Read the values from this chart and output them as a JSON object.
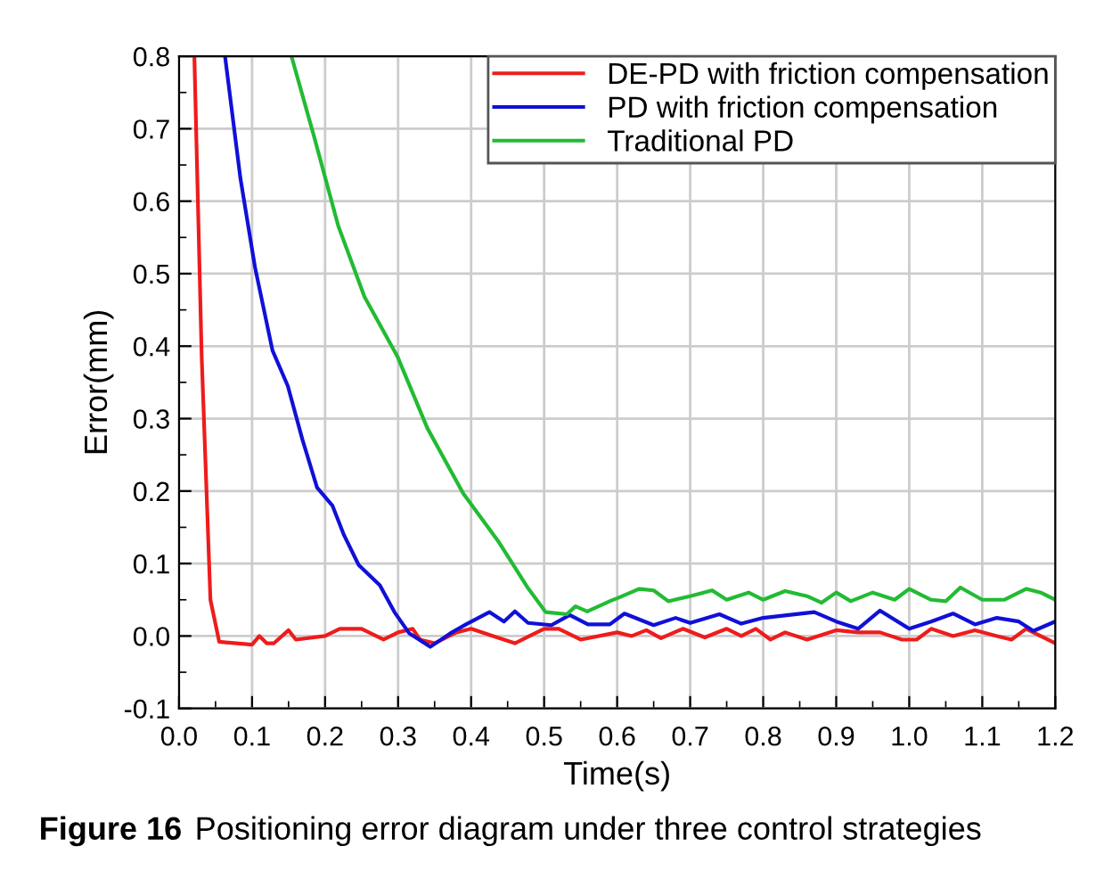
{
  "chart_data": {
    "type": "line",
    "xlabel": "Time(s)",
    "ylabel": "Error(mm)",
    "annotations": [
      "Figure 16",
      "Positioning error diagram under three control strategies"
    ],
    "xlim": [
      0.0,
      1.2
    ],
    "xticks": [
      {
        "value": 0.0,
        "label": "0.0"
      },
      0.1,
      0.2,
      0.3,
      0.4,
      0.5,
      0.6,
      0.7,
      0.8,
      0.9,
      {
        "value": 1.0,
        "label": "1.0"
      },
      1.1,
      1.2
    ],
    "ylim": [
      -0.1,
      0.8
    ],
    "yticks": [
      -0.1,
      {
        "value": 0.0,
        "label": "0.0"
      },
      0.1,
      0.2,
      0.3,
      0.4,
      0.5,
      0.6,
      0.7,
      0.8
    ],
    "grid": true,
    "legend": "top right",
    "line_style": "solid",
    "series": [
      {
        "name": "DE-PD with friction compensation",
        "color": "#ee1c1c",
        "x": [
          0.021,
          0.031,
          0.043,
          0.055,
          0.1,
          0.11,
          0.12,
          0.13,
          0.15,
          0.16,
          0.2,
          0.22,
          0.25,
          0.28,
          0.3,
          0.32,
          0.33,
          0.35,
          0.38,
          0.4,
          0.43,
          0.46,
          0.48,
          0.5,
          0.52,
          0.55,
          0.6,
          0.62,
          0.64,
          0.66,
          0.69,
          0.72,
          0.75,
          0.77,
          0.79,
          0.81,
          0.83,
          0.86,
          0.9,
          0.93,
          0.96,
          0.99,
          1.01,
          1.03,
          1.06,
          1.09,
          1.12,
          1.14,
          1.16,
          1.2
        ],
        "values": [
          0.8,
          0.386,
          0.05,
          -0.008,
          -0.012,
          0.0,
          -0.01,
          -0.01,
          0.008,
          -0.005,
          0.0,
          0.01,
          0.01,
          -0.005,
          0.005,
          0.01,
          -0.005,
          -0.01,
          0.005,
          0.01,
          0.0,
          -0.01,
          0.0,
          0.01,
          0.01,
          -0.005,
          0.005,
          0.0,
          0.008,
          -0.003,
          0.01,
          -0.002,
          0.01,
          0.0,
          0.01,
          -0.005,
          0.005,
          -0.005,
          0.008,
          0.005,
          0.005,
          -0.005,
          -0.005,
          0.01,
          0.0,
          0.008,
          0.0,
          -0.005,
          0.01,
          -0.01
        ]
      },
      {
        "name": "PD with friction compensation",
        "color": "#1010d8",
        "x": [
          0.063,
          0.084,
          0.104,
          0.128,
          0.149,
          0.169,
          0.189,
          0.21,
          0.226,
          0.246,
          0.275,
          0.295,
          0.315,
          0.344,
          0.372,
          0.393,
          0.425,
          0.445,
          0.46,
          0.478,
          0.51,
          0.535,
          0.56,
          0.59,
          0.61,
          0.65,
          0.68,
          0.7,
          0.74,
          0.77,
          0.8,
          0.87,
          0.9,
          0.93,
          0.96,
          1.0,
          1.03,
          1.06,
          1.09,
          1.12,
          1.15,
          1.17,
          1.2
        ],
        "values": [
          0.8,
          0.632,
          0.509,
          0.394,
          0.345,
          0.271,
          0.205,
          0.18,
          0.139,
          0.098,
          0.07,
          0.033,
          0.004,
          -0.015,
          0.004,
          0.016,
          0.033,
          0.02,
          0.034,
          0.018,
          0.015,
          0.029,
          0.016,
          0.016,
          0.031,
          0.015,
          0.025,
          0.018,
          0.03,
          0.017,
          0.025,
          0.033,
          0.02,
          0.01,
          0.035,
          0.01,
          0.02,
          0.031,
          0.016,
          0.025,
          0.02,
          0.007,
          0.02
        ]
      },
      {
        "name": "Traditional PD",
        "color": "#22bb33",
        "x": [
          0.154,
          0.185,
          0.218,
          0.254,
          0.299,
          0.34,
          0.389,
          0.437,
          0.478,
          0.502,
          0.531,
          0.543,
          0.559,
          0.592,
          0.6,
          0.63,
          0.65,
          0.67,
          0.7,
          0.73,
          0.75,
          0.78,
          0.8,
          0.83,
          0.86,
          0.88,
          0.9,
          0.92,
          0.95,
          0.98,
          1.0,
          1.03,
          1.05,
          1.07,
          1.1,
          1.13,
          1.16,
          1.18,
          1.2
        ],
        "values": [
          0.8,
          0.689,
          0.566,
          0.468,
          0.386,
          0.287,
          0.197,
          0.131,
          0.066,
          0.033,
          0.03,
          0.041,
          0.034,
          0.049,
          0.052,
          0.065,
          0.063,
          0.048,
          0.055,
          0.063,
          0.05,
          0.06,
          0.05,
          0.062,
          0.055,
          0.046,
          0.06,
          0.048,
          0.06,
          0.05,
          0.065,
          0.05,
          0.048,
          0.067,
          0.05,
          0.05,
          0.065,
          0.06,
          0.05
        ]
      }
    ]
  }
}
